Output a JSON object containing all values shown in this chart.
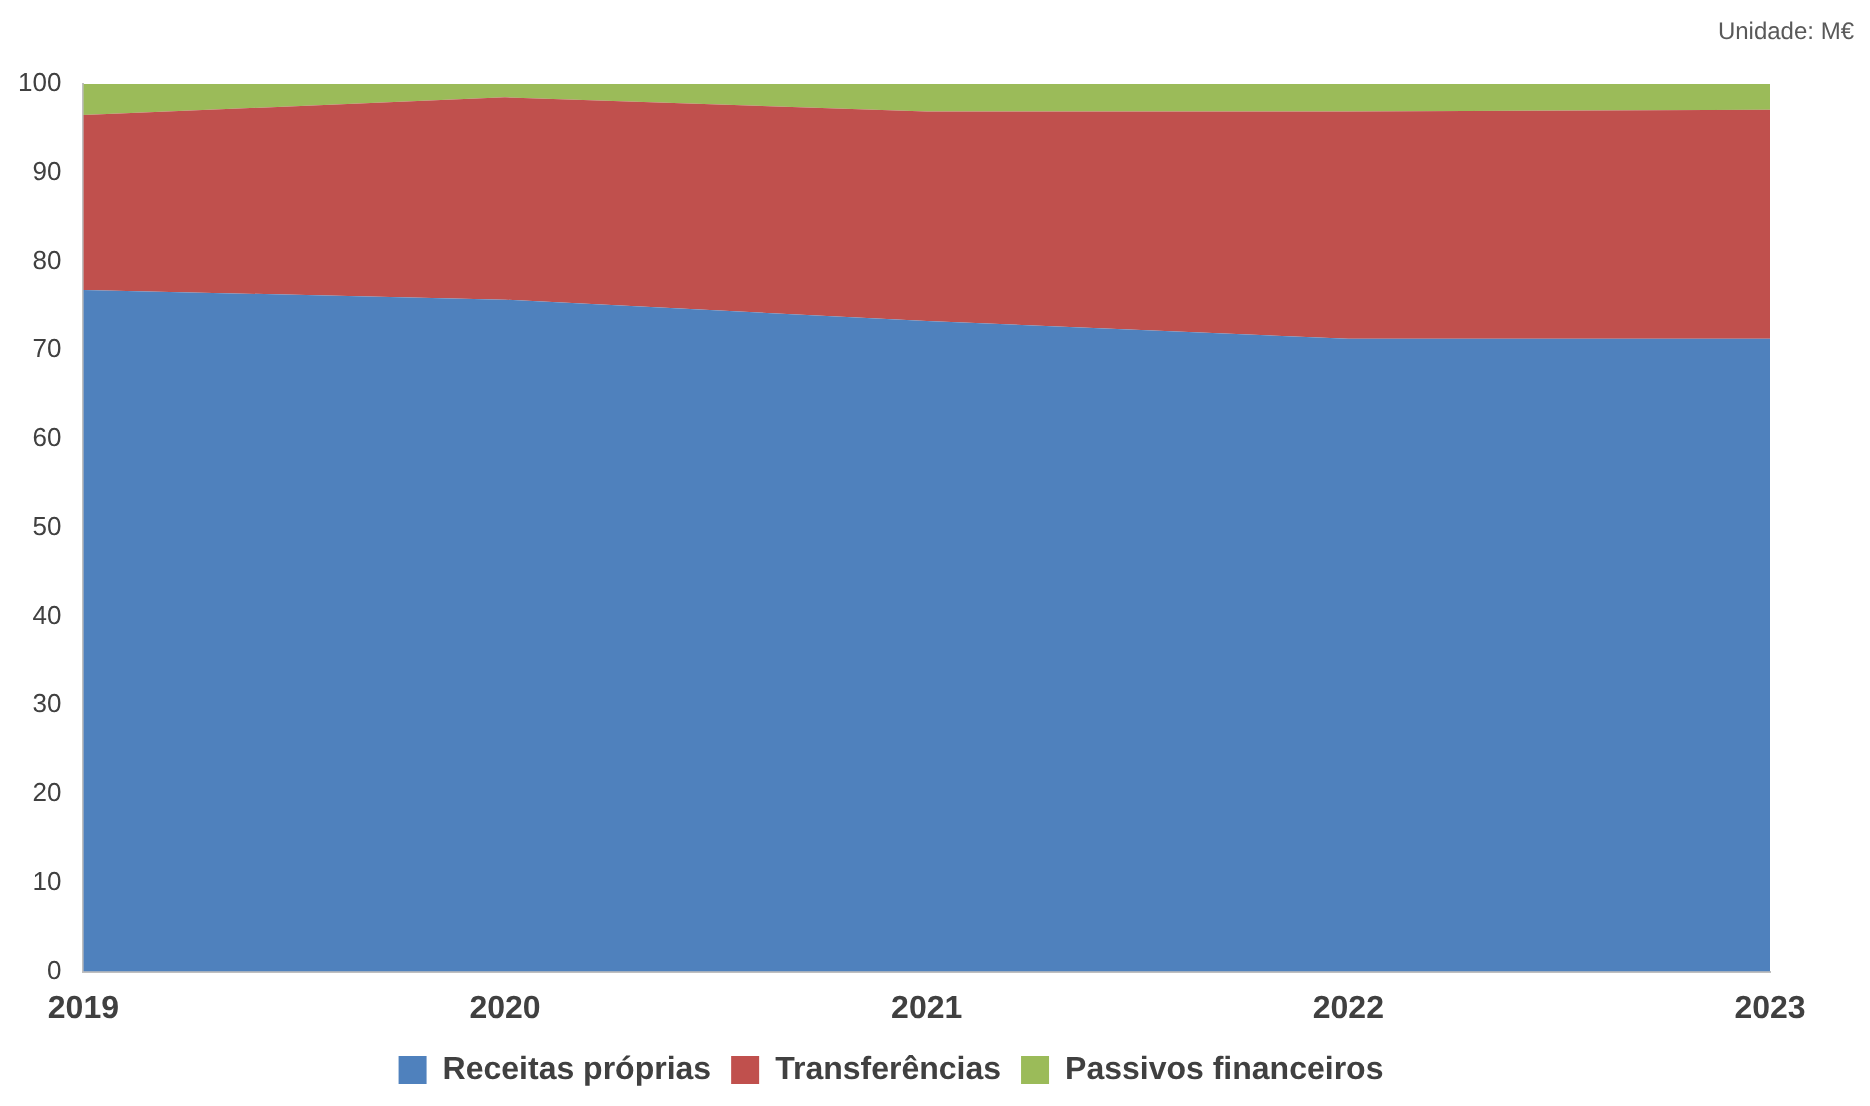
{
  "chart_data": {
    "type": "area",
    "stacked": true,
    "categories": [
      "2019",
      "2020",
      "2021",
      "2022",
      "2023"
    ],
    "series": [
      {
        "name": "Receitas próprias",
        "color": "#4f81bd",
        "values": [
          76.8,
          75.7,
          73.3,
          71.3,
          71.3
        ]
      },
      {
        "name": "Transferências",
        "color": "#c0504d",
        "values": [
          19.7,
          22.8,
          23.6,
          25.6,
          25.8
        ]
      },
      {
        "name": "Passivos financeiros",
        "color": "#9bbb59",
        "values": [
          3.5,
          1.5,
          3.1,
          3.1,
          2.9
        ]
      }
    ],
    "ylim": [
      0,
      100
    ],
    "yticks": [
      0,
      10,
      20,
      30,
      40,
      50,
      60,
      70,
      80,
      90,
      100
    ],
    "grid": false,
    "legend": "bottom",
    "marker": "none",
    "annotations": [
      "Unidade: M€"
    ]
  }
}
